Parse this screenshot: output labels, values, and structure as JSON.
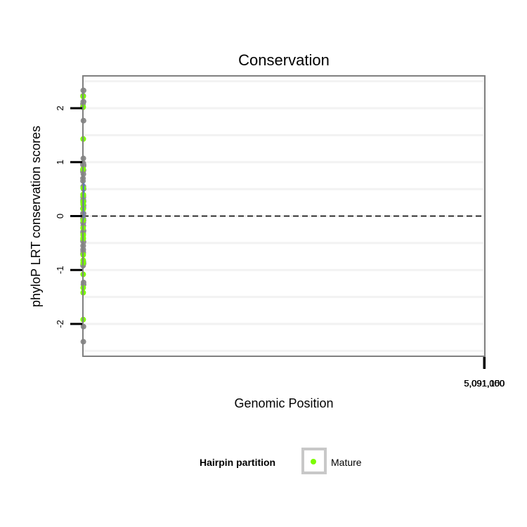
{
  "chart_data": {
    "type": "scatter",
    "title": "Conservation",
    "xlabel": "Genomic Position",
    "ylabel": "phyloP LRT conservation scores",
    "xlim": [
      4990976,
      5091176
    ],
    "ylim": [
      -2.6,
      2.6
    ],
    "x_ticks": [
      {
        "value": 5091000,
        "label": "5,091,000"
      },
      {
        "value": 5091050,
        "label": "5,091,050"
      },
      {
        "value": 5091100,
        "label": "5,091,100"
      }
    ],
    "y_ticks": [
      {
        "value": -2,
        "label": "-2"
      },
      {
        "value": -1,
        "label": "-1"
      },
      {
        "value": 0,
        "label": "0"
      },
      {
        "value": 1,
        "label": "1"
      },
      {
        "value": 2,
        "label": "2"
      }
    ],
    "reference_line": {
      "y": 0,
      "style": "dashed"
    },
    "colors": {
      "other": "#8c8c8c",
      "mature": "#7cfc00",
      "smooth": "#3366ff",
      "ribbon": "#d3d3d3",
      "panel_border": "#808080",
      "grid": "#f2f2f2"
    },
    "legend": {
      "title": "Hairpin partition",
      "entries": [
        {
          "label": "Mature",
          "color": "#7cfc00"
        }
      ],
      "position": "bottom"
    },
    "smooth": {
      "x": [
        4990986,
        4990998,
        4991010,
        4991022,
        4991034,
        4991044,
        4991052,
        4991058,
        4991064,
        4991072,
        4991084,
        4991096,
        4991108,
        4991120,
        4991132,
        4991142
      ],
      "y": [
        0.33,
        0.3,
        0.24,
        0.16,
        0.07,
        -0.03,
        -0.07,
        0.02,
        0.28,
        0.53,
        0.6,
        0.6,
        0.6,
        0.57,
        0.52,
        0.43
      ],
      "lower": [
        -0.25,
        0.0,
        0.07,
        0.02,
        -0.08,
        -0.15,
        -0.2,
        -0.12,
        0.12,
        0.38,
        0.47,
        0.45,
        0.45,
        0.4,
        0.25,
        -0.22
      ],
      "upper": [
        0.93,
        0.6,
        0.41,
        0.3,
        0.2,
        0.08,
        0.06,
        0.16,
        0.44,
        0.72,
        0.75,
        0.75,
        0.75,
        0.75,
        0.8,
        1.03
      ]
    },
    "series": [
      {
        "name": "Other",
        "color": "#8c8c8c",
        "x": [
          4990987,
          4990991,
          4990993,
          4990994,
          4990997,
          4990999,
          4991002,
          4991005,
          4991009,
          4991011,
          4991014,
          4991018,
          4991021,
          4991025,
          4991028,
          4991031,
          4991034,
          4991040,
          4991044,
          4991057,
          4991060,
          4991064,
          4991066,
          4991069,
          4991071,
          4991075,
          4991078,
          4991080,
          4991082,
          4991084,
          4991087,
          4991093,
          4991096,
          4991099,
          4991103,
          4991108,
          4991111,
          4991113,
          4991116,
          4991119,
          4991123,
          4991126,
          4991129,
          4991133,
          4991134,
          4991136,
          4991138,
          4991140,
          4990986,
          4990990,
          4990995,
          4991000,
          4991004,
          4991007,
          4991013,
          4991016,
          4991023,
          4991026,
          4991029,
          4991036,
          4991058,
          4991061,
          4991067,
          4991073,
          4991077,
          4991085,
          4991091,
          4991101,
          4991104,
          4991110,
          4991114,
          4991117,
          4991121,
          4991125,
          4991128,
          4991131,
          4991135,
          4991139,
          4991089,
          4991092,
          4991095,
          4991083,
          4991079
        ],
        "y": [
          -0.05,
          0.65,
          0.14,
          2.08,
          0.85,
          -0.7,
          2.03,
          -0.45,
          -0.92,
          2.23,
          -0.3,
          -0.47,
          -0.9,
          -0.12,
          0.97,
          -0.65,
          0.87,
          -0.32,
          0.05,
          -0.62,
          2.23,
          -0.55,
          0.98,
          0.55,
          -0.68,
          -0.28,
          -2.33,
          -0.05,
          1.07,
          -0.18,
          2.33,
          0.38,
          -0.27,
          0.78,
          -0.85,
          -1.27,
          0.15,
          -0.48,
          0.52,
          1.77,
          -2.05,
          0.95,
          -1.23,
          -0.88,
          2.33,
          -0.08,
          -1.27,
          0.5,
          0.05,
          0.7,
          0.95,
          0.82,
          0.28,
          -0.62,
          -0.55,
          0.87,
          0.35,
          0.25,
          0.3,
          -0.12,
          0.03,
          -0.05,
          0.4,
          -0.88,
          -0.12,
          0.3,
          0.2,
          0.95,
          0.35,
          -0.27,
          0.85,
          0.28,
          1.77,
          0.05,
          0.2,
          2.12,
          0.27,
          0.93,
          2.12,
          2.33,
          0.55,
          2.33,
          2.12
        ]
      },
      {
        "name": "Mature",
        "color": "#7cfc00",
        "x": [
          4991032,
          4991033,
          4991034,
          4991035,
          4991036,
          4991037,
          4991038,
          4991039,
          4991040,
          4991041,
          4991042,
          4991043,
          4991044,
          4991045,
          4991046,
          4991047,
          4991048,
          4991049,
          4991050,
          4991051,
          4991052,
          4991053,
          4991054,
          4991055,
          4991041,
          4991048
        ],
        "y": [
          2.02,
          2.22,
          0.4,
          2.02,
          -0.22,
          -0.42,
          -0.35,
          -1.33,
          -1.08,
          0.52,
          -0.82,
          -0.87,
          -0.08,
          0.87,
          -0.42,
          0.22,
          -1.92,
          -0.35,
          0.27,
          1.43,
          -0.4,
          1.43,
          -1.42,
          0.13,
          0.38,
          -0.72
        ]
      }
    ]
  }
}
